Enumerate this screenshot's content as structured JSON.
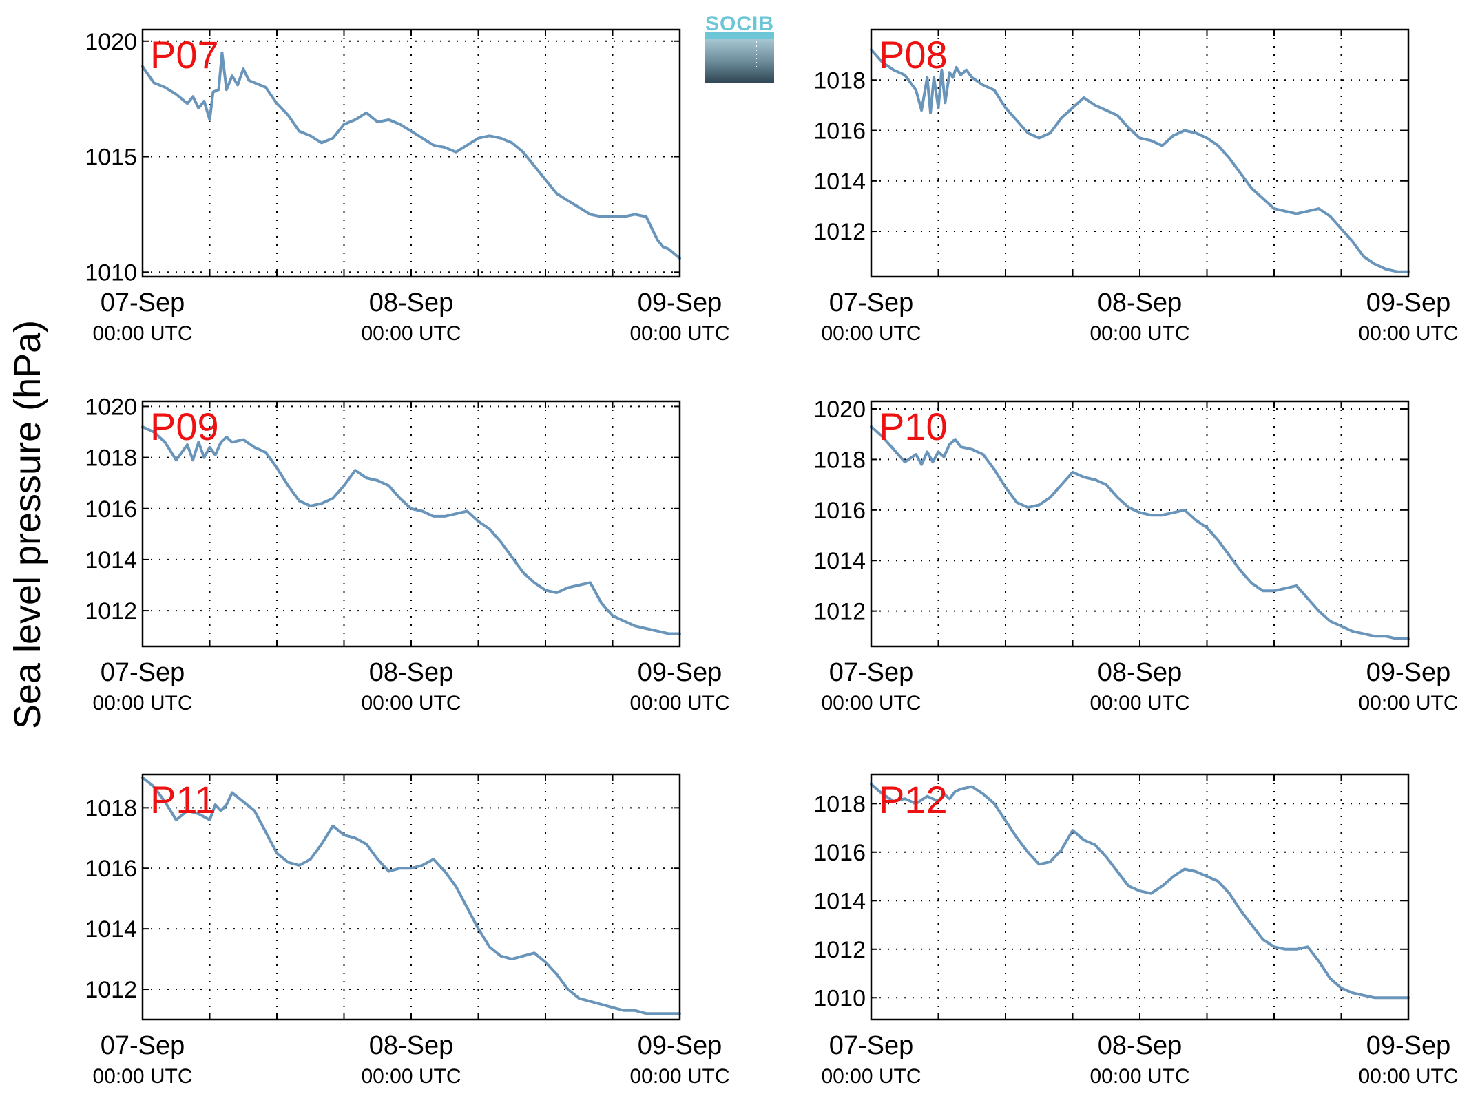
{
  "ylabel": "Sea level pressure (hPa)",
  "logo": {
    "text": "SOCIB"
  },
  "colors": {
    "series": "#6a95bb",
    "panel_label": "#ee1111",
    "logo_top": "#6cc6d6",
    "logo_bottom": "#2e4452"
  },
  "chart_data": [
    {
      "type": "line",
      "panel": "P07",
      "grid": true,
      "xticks": [
        {
          "x": 0,
          "date": "07-Sep",
          "time": "00:00 UTC"
        },
        {
          "x": 24,
          "date": "08-Sep",
          "time": "00:00 UTC"
        },
        {
          "x": 48,
          "date": "09-Sep",
          "time": "00:00 UTC"
        }
      ],
      "xlim": [
        0,
        48
      ],
      "ylim": [
        1009.8,
        1020.5
      ],
      "yticks": [
        1010,
        1015,
        1020
      ],
      "series": [
        {
          "x": [
            0,
            1,
            2,
            3,
            4,
            4.5,
            5,
            5.5,
            6,
            6.3,
            6.8,
            7.1,
            7.5,
            8,
            8.5,
            9,
            9.5,
            10,
            11,
            12,
            13,
            14,
            15,
            16,
            17,
            18,
            19,
            20,
            21,
            22,
            23,
            24,
            25,
            26,
            27,
            28,
            29,
            30,
            31,
            32,
            33,
            34,
            35,
            36,
            37,
            38,
            39,
            40,
            41,
            42,
            43,
            44,
            45,
            46,
            46.5,
            47,
            47.5,
            48
          ],
          "y": [
            1018.9,
            1018.2,
            1018.0,
            1017.7,
            1017.3,
            1017.6,
            1017.1,
            1017.4,
            1016.6,
            1017.8,
            1017.9,
            1019.5,
            1017.9,
            1018.5,
            1018.1,
            1018.8,
            1018.3,
            1018.2,
            1018.0,
            1017.3,
            1016.8,
            1016.1,
            1015.9,
            1015.6,
            1015.8,
            1016.4,
            1016.6,
            1016.9,
            1016.5,
            1016.6,
            1016.4,
            1016.1,
            1015.8,
            1015.5,
            1015.4,
            1015.2,
            1015.5,
            1015.8,
            1015.9,
            1015.8,
            1015.6,
            1015.2,
            1014.6,
            1014.0,
            1013.4,
            1013.1,
            1012.8,
            1012.5,
            1012.4,
            1012.4,
            1012.4,
            1012.5,
            1012.4,
            1011.4,
            1011.1,
            1011.0,
            1010.8,
            1010.6
          ]
        }
      ]
    },
    {
      "type": "line",
      "panel": "P08",
      "grid": true,
      "xticks": [
        {
          "x": 0,
          "date": "07-Sep",
          "time": "00:00 UTC"
        },
        {
          "x": 24,
          "date": "08-Sep",
          "time": "00:00 UTC"
        },
        {
          "x": 48,
          "date": "09-Sep",
          "time": "00:00 UTC"
        }
      ],
      "xlim": [
        0,
        48
      ],
      "ylim": [
        1010.2,
        1020.0
      ],
      "yticks": [
        1012,
        1014,
        1016,
        1018
      ],
      "series": [
        {
          "x": [
            0,
            1,
            2,
            3,
            3.5,
            4,
            4.5,
            5,
            5.3,
            5.6,
            6,
            6.3,
            6.6,
            7,
            7.3,
            7.6,
            8,
            8.5,
            9,
            10,
            11,
            12,
            13,
            14,
            15,
            16,
            17,
            18,
            19,
            20,
            21,
            22,
            23,
            24,
            25,
            26,
            27,
            28,
            29,
            30,
            31,
            32,
            33,
            34,
            35,
            36,
            37,
            38,
            39,
            40,
            41,
            42,
            43,
            44,
            45,
            46,
            47,
            48
          ],
          "y": [
            1019.2,
            1018.7,
            1018.4,
            1018.2,
            1017.9,
            1017.6,
            1016.8,
            1018.1,
            1016.7,
            1018.1,
            1016.9,
            1018.4,
            1017.1,
            1018.3,
            1018.1,
            1018.5,
            1018.2,
            1018.4,
            1018.1,
            1017.8,
            1017.6,
            1016.9,
            1016.4,
            1015.9,
            1015.7,
            1015.9,
            1016.5,
            1016.9,
            1017.3,
            1017.0,
            1016.8,
            1016.6,
            1016.1,
            1015.7,
            1015.6,
            1015.4,
            1015.8,
            1016.0,
            1015.9,
            1015.7,
            1015.4,
            1014.9,
            1014.3,
            1013.7,
            1013.3,
            1012.9,
            1012.8,
            1012.7,
            1012.8,
            1012.9,
            1012.6,
            1012.1,
            1011.6,
            1011.0,
            1010.7,
            1010.5,
            1010.4,
            1010.4
          ]
        }
      ]
    },
    {
      "type": "line",
      "panel": "P09",
      "grid": true,
      "xticks": [
        {
          "x": 0,
          "date": "07-Sep",
          "time": "00:00 UTC"
        },
        {
          "x": 24,
          "date": "08-Sep",
          "time": "00:00 UTC"
        },
        {
          "x": 48,
          "date": "09-Sep",
          "time": "00:00 UTC"
        }
      ],
      "xlim": [
        0,
        48
      ],
      "ylim": [
        1010.6,
        1020.2
      ],
      "yticks": [
        1012,
        1014,
        1016,
        1018,
        1020
      ],
      "series": [
        {
          "x": [
            0,
            1,
            2,
            3,
            4,
            4.5,
            5,
            5.5,
            6,
            6.5,
            7,
            7.5,
            8,
            9,
            10,
            11,
            12,
            13,
            14,
            15,
            16,
            17,
            18,
            19,
            20,
            21,
            22,
            23,
            24,
            25,
            26,
            27,
            28,
            29,
            30,
            31,
            32,
            33,
            34,
            35,
            36,
            37,
            38,
            39,
            40,
            41,
            42,
            43,
            44,
            45,
            46,
            47,
            48
          ],
          "y": [
            1019.2,
            1019.0,
            1018.6,
            1017.9,
            1018.5,
            1017.9,
            1018.6,
            1018.0,
            1018.4,
            1018.1,
            1018.6,
            1018.8,
            1018.6,
            1018.7,
            1018.4,
            1018.2,
            1017.6,
            1016.9,
            1016.3,
            1016.1,
            1016.2,
            1016.4,
            1016.9,
            1017.5,
            1017.2,
            1017.1,
            1016.9,
            1016.4,
            1016.0,
            1015.9,
            1015.7,
            1015.7,
            1015.8,
            1015.9,
            1015.5,
            1015.2,
            1014.7,
            1014.1,
            1013.5,
            1013.1,
            1012.8,
            1012.7,
            1012.9,
            1013.0,
            1013.1,
            1012.3,
            1011.8,
            1011.6,
            1011.4,
            1011.3,
            1011.2,
            1011.1,
            1011.1
          ]
        }
      ]
    },
    {
      "type": "line",
      "panel": "P10",
      "grid": true,
      "xticks": [
        {
          "x": 0,
          "date": "07-Sep",
          "time": "00:00 UTC"
        },
        {
          "x": 24,
          "date": "08-Sep",
          "time": "00:00 UTC"
        },
        {
          "x": 48,
          "date": "09-Sep",
          "time": "00:00 UTC"
        }
      ],
      "xlim": [
        0,
        48
      ],
      "ylim": [
        1010.6,
        1020.3
      ],
      "yticks": [
        1012,
        1014,
        1016,
        1018,
        1020
      ],
      "series": [
        {
          "x": [
            0,
            1,
            2,
            3,
            4,
            4.5,
            5,
            5.5,
            6,
            6.5,
            7,
            7.5,
            8,
            9,
            10,
            11,
            12,
            13,
            14,
            15,
            16,
            17,
            18,
            19,
            20,
            21,
            22,
            23,
            24,
            25,
            26,
            27,
            28,
            29,
            30,
            31,
            32,
            33,
            34,
            35,
            36,
            37,
            38,
            39,
            40,
            41,
            42,
            43,
            44,
            45,
            46,
            47,
            48
          ],
          "y": [
            1019.3,
            1018.9,
            1018.4,
            1017.9,
            1018.2,
            1017.8,
            1018.3,
            1017.9,
            1018.3,
            1018.1,
            1018.6,
            1018.8,
            1018.5,
            1018.4,
            1018.2,
            1017.6,
            1016.9,
            1016.3,
            1016.1,
            1016.2,
            1016.5,
            1017.0,
            1017.5,
            1017.3,
            1017.2,
            1017.0,
            1016.5,
            1016.1,
            1015.9,
            1015.8,
            1015.8,
            1015.9,
            1016.0,
            1015.6,
            1015.3,
            1014.8,
            1014.2,
            1013.6,
            1013.1,
            1012.8,
            1012.8,
            1012.9,
            1013.0,
            1012.5,
            1012.0,
            1011.6,
            1011.4,
            1011.2,
            1011.1,
            1011.0,
            1011.0,
            1010.9,
            1010.9
          ]
        }
      ]
    },
    {
      "type": "line",
      "panel": "P11",
      "grid": true,
      "xticks": [
        {
          "x": 0,
          "date": "07-Sep",
          "time": "00:00 UTC"
        },
        {
          "x": 24,
          "date": "08-Sep",
          "time": "00:00 UTC"
        },
        {
          "x": 48,
          "date": "09-Sep",
          "time": "00:00 UTC"
        }
      ],
      "xlim": [
        0,
        48
      ],
      "ylim": [
        1011.0,
        1019.1
      ],
      "yticks": [
        1012,
        1014,
        1016,
        1018
      ],
      "series": [
        {
          "x": [
            0,
            1,
            2,
            3,
            4,
            5,
            6,
            6.5,
            7,
            7.5,
            8,
            9,
            10,
            11,
            12,
            13,
            14,
            15,
            16,
            17,
            18,
            19,
            20,
            21,
            22,
            23,
            24,
            25,
            26,
            27,
            28,
            29,
            30,
            31,
            32,
            33,
            34,
            35,
            36,
            37,
            38,
            39,
            40,
            41,
            42,
            43,
            44,
            45,
            46,
            47,
            48
          ],
          "y": [
            1019.0,
            1018.7,
            1018.2,
            1017.6,
            1017.9,
            1017.8,
            1017.6,
            1018.1,
            1017.9,
            1018.1,
            1018.5,
            1018.2,
            1017.9,
            1017.2,
            1016.5,
            1016.2,
            1016.1,
            1016.3,
            1016.8,
            1017.4,
            1017.1,
            1017.0,
            1016.8,
            1016.3,
            1015.9,
            1016.0,
            1016.0,
            1016.1,
            1016.3,
            1015.9,
            1015.4,
            1014.7,
            1014.0,
            1013.4,
            1013.1,
            1013.0,
            1013.1,
            1013.2,
            1012.9,
            1012.5,
            1012.0,
            1011.7,
            1011.6,
            1011.5,
            1011.4,
            1011.3,
            1011.3,
            1011.2,
            1011.2,
            1011.2,
            1011.2
          ]
        }
      ]
    },
    {
      "type": "line",
      "panel": "P12",
      "grid": true,
      "xticks": [
        {
          "x": 0,
          "date": "07-Sep",
          "time": "00:00 UTC"
        },
        {
          "x": 24,
          "date": "08-Sep",
          "time": "00:00 UTC"
        },
        {
          "x": 48,
          "date": "09-Sep",
          "time": "00:00 UTC"
        }
      ],
      "xlim": [
        0,
        48
      ],
      "ylim": [
        1009.1,
        1019.2
      ],
      "yticks": [
        1010,
        1012,
        1014,
        1016,
        1018
      ],
      "series": [
        {
          "x": [
            0,
            1,
            2,
            3,
            4,
            5,
            6,
            6.5,
            7,
            7.5,
            8,
            9,
            10,
            11,
            12,
            13,
            14,
            15,
            16,
            17,
            18,
            19,
            20,
            21,
            22,
            23,
            24,
            25,
            26,
            27,
            28,
            29,
            30,
            31,
            32,
            33,
            34,
            35,
            36,
            37,
            38,
            39,
            40,
            41,
            42,
            43,
            44,
            45,
            46,
            47,
            48
          ],
          "y": [
            1018.8,
            1018.4,
            1018.1,
            1018.2,
            1018.0,
            1018.3,
            1018.1,
            1018.4,
            1018.2,
            1018.5,
            1018.6,
            1018.7,
            1018.4,
            1018.0,
            1017.3,
            1016.6,
            1016.0,
            1015.5,
            1015.6,
            1016.1,
            1016.9,
            1016.5,
            1016.3,
            1015.8,
            1015.2,
            1014.6,
            1014.4,
            1014.3,
            1014.6,
            1015.0,
            1015.3,
            1015.2,
            1015.0,
            1014.8,
            1014.3,
            1013.6,
            1013.0,
            1012.4,
            1012.1,
            1012.0,
            1012.0,
            1012.1,
            1011.5,
            1010.8,
            1010.4,
            1010.2,
            1010.1,
            1010.0,
            1010.0,
            1010.0,
            1010.0
          ]
        }
      ]
    }
  ]
}
